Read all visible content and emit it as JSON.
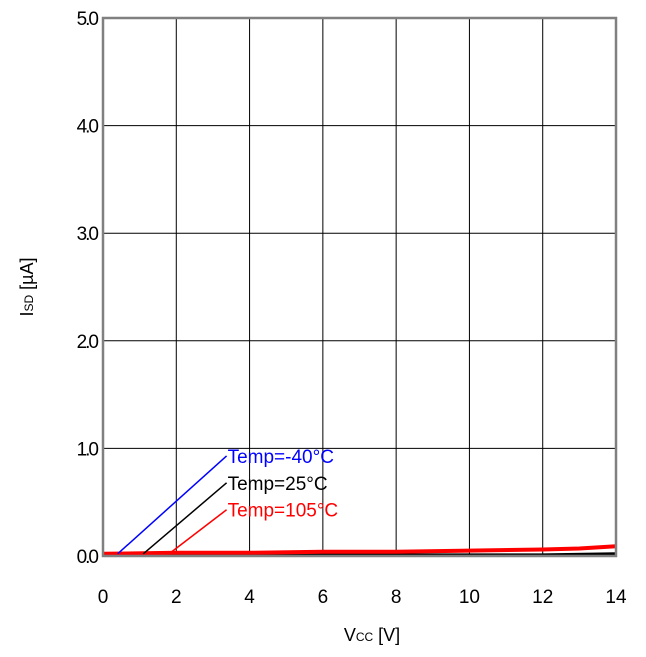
{
  "chart_data": {
    "type": "line",
    "xlabel": {
      "main": "V",
      "sub": "CC",
      "unit": " [V]"
    },
    "ylabel": {
      "main": "I",
      "sub": "SD",
      "unit": " [µA]"
    },
    "xlim": [
      0,
      14
    ],
    "ylim": [
      0,
      5
    ],
    "x_ticks": [
      0,
      2,
      4,
      6,
      8,
      10,
      12,
      14
    ],
    "x_tick_labels": [
      "0",
      "2",
      "4",
      "6",
      "8",
      "10",
      "12",
      "14"
    ],
    "y_ticks": [
      0,
      1,
      2,
      3,
      4,
      5
    ],
    "y_tick_labels": [
      "0.0",
      "1.0",
      "2.0",
      "3.0",
      "4.0",
      "5.0"
    ],
    "grid": true,
    "series": [
      {
        "name": "Temp=-40°C",
        "color": "#0000ff",
        "x": [
          0,
          2,
          4,
          6,
          8,
          10,
          12,
          14
        ],
        "y": [
          0.01,
          0.01,
          0.01,
          0.01,
          0.01,
          0.01,
          0.01,
          0.01
        ]
      },
      {
        "name": "Temp=25°C",
        "color": "#000000",
        "x": [
          0,
          2,
          4,
          6,
          8,
          10,
          12,
          14
        ],
        "y": [
          0.01,
          0.01,
          0.01,
          0.01,
          0.01,
          0.01,
          0.01,
          0.02
        ]
      },
      {
        "name": "Temp=105°C",
        "color": "#ff0000",
        "x": [
          0,
          2,
          4,
          6,
          8,
          10,
          12,
          13,
          14
        ],
        "y": [
          0.02,
          0.03,
          0.03,
          0.04,
          0.04,
          0.05,
          0.06,
          0.07,
          0.09
        ]
      }
    ],
    "annotations": [
      {
        "text": "Temp=-40°C",
        "color": "#0000ff",
        "point_x": 0.4,
        "label_x": 3.4,
        "label_y": 0.93
      },
      {
        "text": "Temp=25°C",
        "color": "#000000",
        "point_x": 1.1,
        "label_x": 3.4,
        "label_y": 0.68
      },
      {
        "text": "Temp=105°C",
        "color": "#ff0000",
        "point_x": 1.8,
        "label_x": 3.4,
        "label_y": 0.43
      }
    ]
  }
}
